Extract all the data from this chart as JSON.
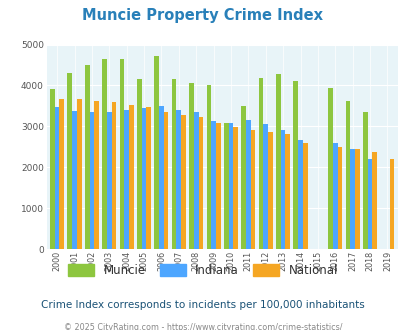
{
  "title": "Muncie Property Crime Index",
  "years": [
    2000,
    2001,
    2002,
    2003,
    2004,
    2005,
    2006,
    2007,
    2008,
    2009,
    2010,
    2011,
    2012,
    2013,
    2014,
    2015,
    2016,
    2017,
    2018,
    2019
  ],
  "muncie": [
    3910,
    4300,
    4500,
    4650,
    4650,
    4160,
    4720,
    4160,
    4060,
    4000,
    3080,
    3500,
    4190,
    4290,
    4100,
    null,
    3940,
    3630,
    3340,
    null
  ],
  "indiana": [
    3470,
    3370,
    3360,
    3340,
    3400,
    3460,
    3490,
    3390,
    3340,
    3120,
    3080,
    3150,
    3060,
    2920,
    2660,
    null,
    2590,
    2440,
    2200,
    null
  ],
  "national": [
    3680,
    3660,
    3620,
    3600,
    3520,
    3480,
    3350,
    3280,
    3220,
    3090,
    2980,
    2910,
    2870,
    2810,
    2600,
    null,
    2500,
    2450,
    2370,
    2210
  ],
  "muncie_color": "#8dc63f",
  "indiana_color": "#4da6ff",
  "national_color": "#f5a623",
  "bg_color": "#e8f4f8",
  "title_color": "#2980b9",
  "subtitle": "Crime Index corresponds to incidents per 100,000 inhabitants",
  "footer": "© 2025 CityRating.com - https://www.cityrating.com/crime-statistics/",
  "ylim": [
    0,
    5000
  ],
  "yticks": [
    0,
    1000,
    2000,
    3000,
    4000,
    5000
  ]
}
